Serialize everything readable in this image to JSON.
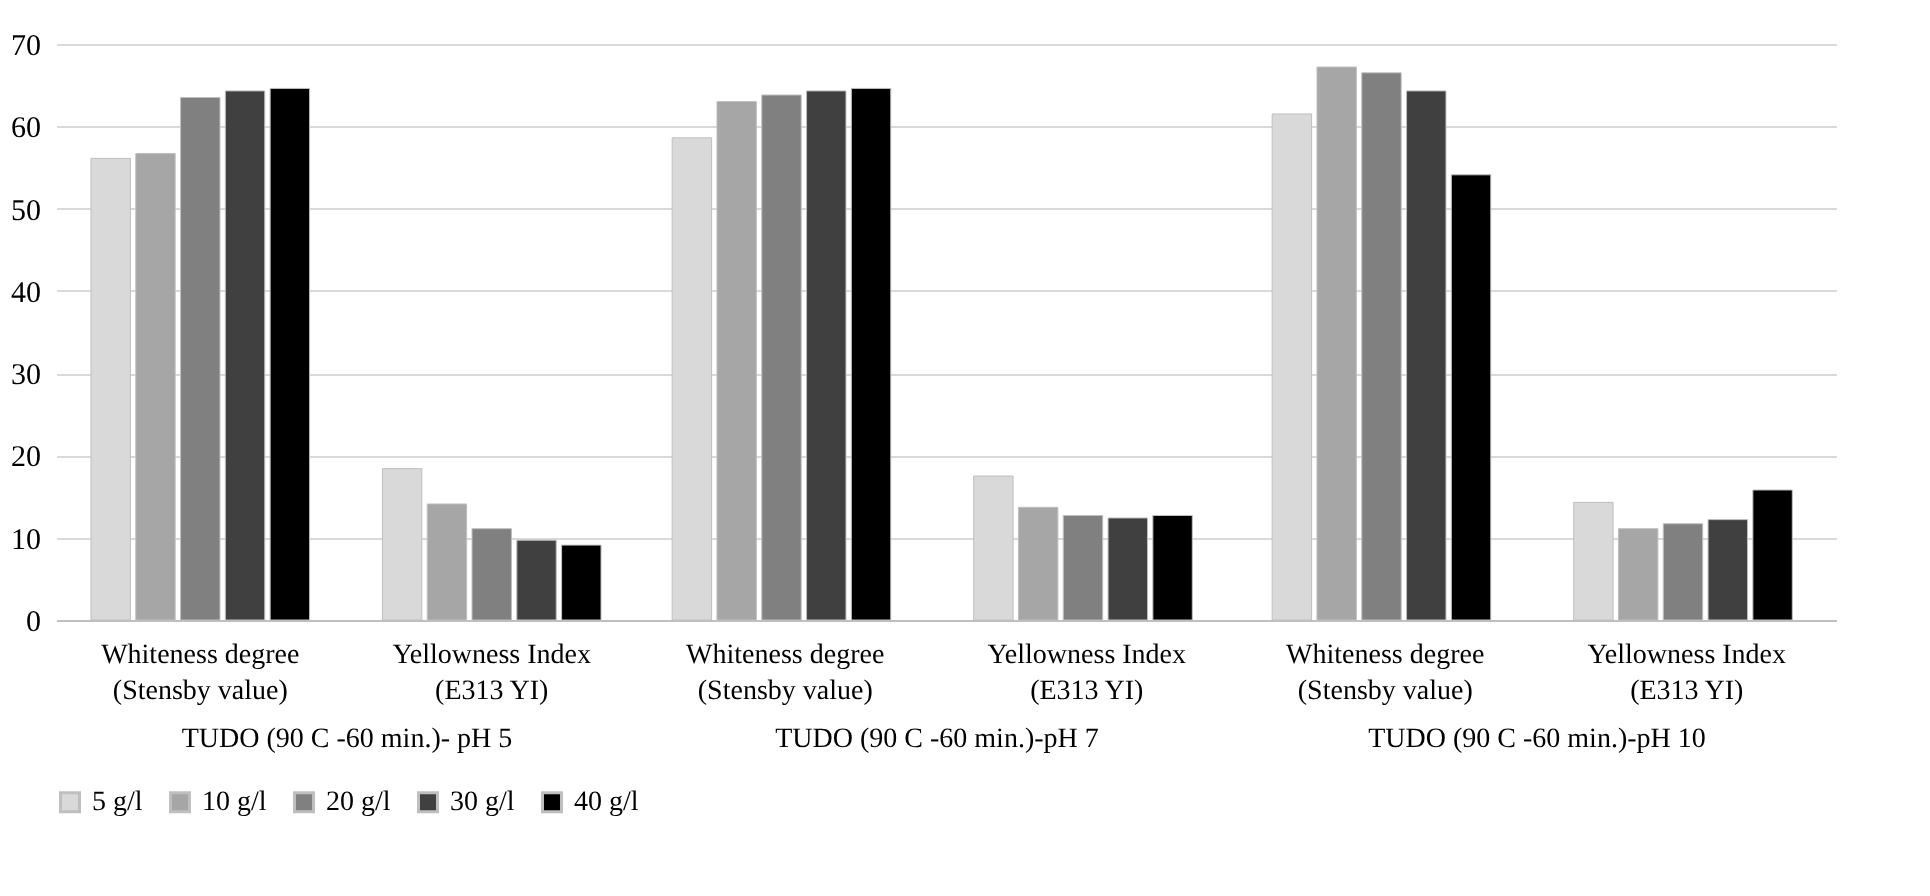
{
  "chart_data": [
    {
      "type": "bar",
      "xlabel": "TUDO (90 C  -60 min.)- pH 5",
      "categories": [
        "Whiteness degree (Stensby value)",
        "Yellowness Index (E313 YI)"
      ],
      "ylim": [
        0,
        70
      ],
      "yticks": [
        0,
        10,
        20,
        30,
        40,
        50,
        60,
        70
      ],
      "grid": "y",
      "legend": "bottom",
      "series": [
        {
          "name": "5 g/l",
          "color": "#d9d9d9",
          "values": [
            56.1,
            18.4
          ]
        },
        {
          "name": "10 g/l",
          "color": "#a6a6a6",
          "values": [
            56.7,
            14.1
          ]
        },
        {
          "name": "20 g/l",
          "color": "#808080",
          "values": [
            63.5,
            11.1
          ]
        },
        {
          "name": "30 g/l",
          "color": "#404040",
          "values": [
            64.3,
            9.7
          ]
        },
        {
          "name": "40 g/l",
          "color": "#000000",
          "values": [
            64.6,
            9.1
          ]
        }
      ]
    },
    {
      "type": "bar",
      "xlabel": "TUDO (90 C  -60 min.)-pH 7",
      "categories": [
        "Whiteness degree (Stensby value)",
        "Yellowness Index (E313 YI)"
      ],
      "ylim": [
        0,
        70
      ],
      "yticks": [
        0,
        10,
        20,
        30,
        40,
        50,
        60,
        70
      ],
      "grid": "y",
      "tick_labels": "x",
      "series": [
        {
          "name": "5 g/l",
          "color": "#d9d9d9",
          "values": [
            58.6,
            17.5
          ]
        },
        {
          "name": "10 g/l",
          "color": "#a6a6a6",
          "values": [
            63.0,
            13.7
          ]
        },
        {
          "name": "20 g/l",
          "color": "#808080",
          "values": [
            63.8,
            12.7
          ]
        },
        {
          "name": "30 g/l",
          "color": "#404040",
          "values": [
            64.3,
            12.4
          ]
        },
        {
          "name": "40 g/l",
          "color": "#000000",
          "values": [
            64.6,
            12.7
          ]
        }
      ]
    },
    {
      "type": "bar",
      "xlabel": "TUDO (90 C  -60 min.)-pH 10",
      "categories": [
        "Whiteness degree (Stensby value)",
        "Yellowness Index (E313 YI)"
      ],
      "ylim": [
        0,
        70
      ],
      "yticks": [
        0,
        10,
        20,
        30,
        40,
        50,
        60,
        70
      ],
      "grid": "y",
      "tick_labels": "x",
      "series": [
        {
          "name": "5 g/l",
          "color": "#d9d9d9",
          "values": [
            61.5,
            14.3
          ]
        },
        {
          "name": "10 g/l",
          "color": "#a6a6a6",
          "values": [
            67.2,
            11.1
          ]
        },
        {
          "name": "20 g/l",
          "color": "#808080",
          "values": [
            66.5,
            11.7
          ]
        },
        {
          "name": "30 g/l",
          "color": "#404040",
          "values": [
            64.3,
            12.2
          ]
        },
        {
          "name": "40 g/l",
          "color": "#000000",
          "values": [
            54.1,
            15.8
          ]
        }
      ]
    }
  ]
}
